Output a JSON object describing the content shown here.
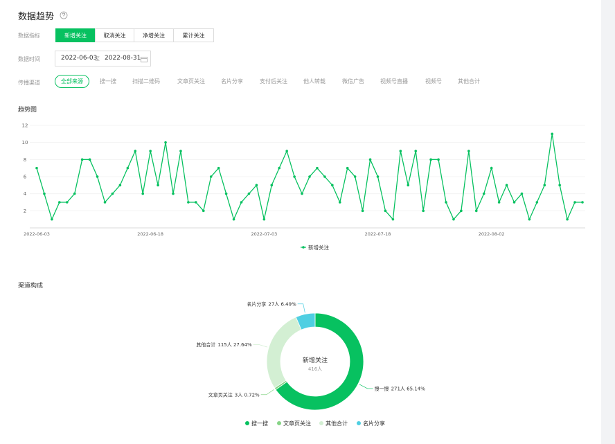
{
  "title": "数据趋势",
  "filters": {
    "metric": {
      "label": "数据指标",
      "options": [
        "新增关注",
        "取消关注",
        "净增关注",
        "累计关注"
      ],
      "active": 0
    },
    "date": {
      "label": "数据时间",
      "start": "2022-06-03",
      "sep": "至",
      "end": "2022-08-31"
    },
    "channel": {
      "label": "传播渠道",
      "options": [
        "全部来源",
        "搜一搜",
        "扫描二维码",
        "文章页关注",
        "名片分享",
        "支付后关注",
        "他人转载",
        "微信广告",
        "视频号直播",
        "视频号",
        "其他合计"
      ],
      "active": 0
    }
  },
  "chart_data": [
    {
      "type": "line",
      "title": "趋势图",
      "categories": [
        "2022-06-03",
        null,
        null,
        null,
        null,
        null,
        null,
        null,
        null,
        null,
        null,
        null,
        null,
        null,
        null,
        "2022-06-18",
        null,
        null,
        null,
        null,
        null,
        null,
        null,
        null,
        null,
        null,
        null,
        null,
        null,
        null,
        "2022-07-03",
        null,
        null,
        null,
        null,
        null,
        null,
        null,
        null,
        null,
        null,
        null,
        null,
        null,
        null,
        "2022-07-18",
        null,
        null,
        null,
        null,
        null,
        null,
        null,
        null,
        null,
        null,
        null,
        null,
        null,
        null,
        "2022-08-02",
        null,
        null,
        null,
        null,
        null,
        null,
        null,
        null,
        null,
        null,
        null,
        null
      ],
      "series": [
        {
          "name": "新增关注",
          "color": "#07c160",
          "values": [
            7,
            4,
            1,
            3,
            3,
            4,
            8,
            8,
            6,
            3,
            4,
            5,
            7,
            9,
            4,
            9,
            5,
            10,
            4,
            9,
            3,
            3,
            2,
            6,
            7,
            4,
            1,
            3,
            4,
            5,
            1,
            5,
            7,
            9,
            6,
            4,
            6,
            7,
            6,
            5,
            3,
            7,
            6,
            2,
            8,
            6,
            2,
            1,
            9,
            5,
            9,
            2,
            8,
            8,
            3,
            1,
            2,
            9,
            2,
            4,
            7,
            3,
            5,
            3,
            4,
            1,
            3,
            5,
            11,
            5,
            1,
            3,
            3
          ]
        }
      ],
      "ylim": [
        0,
        12
      ],
      "yticks": [
        2,
        4,
        6,
        8,
        10,
        12
      ],
      "grid": true,
      "legend": "bottom"
    },
    {
      "type": "donut",
      "title": "渠道构成",
      "center_label": "新增关注",
      "center_value": "416人",
      "categories": [
        "搜一搜",
        "文章页关注",
        "其他合计",
        "名片分享"
      ],
      "values": [
        65.14,
        0.72,
        27.64,
        6.49
      ],
      "value_labels": [
        "271人 65.14%",
        "3人 0.72%",
        "115人 27.64%",
        "27人 6.49%"
      ],
      "colors": [
        "#07c160",
        "#86d486",
        "#d3efd3",
        "#4fcfe2"
      ],
      "legend": "bottom"
    }
  ]
}
